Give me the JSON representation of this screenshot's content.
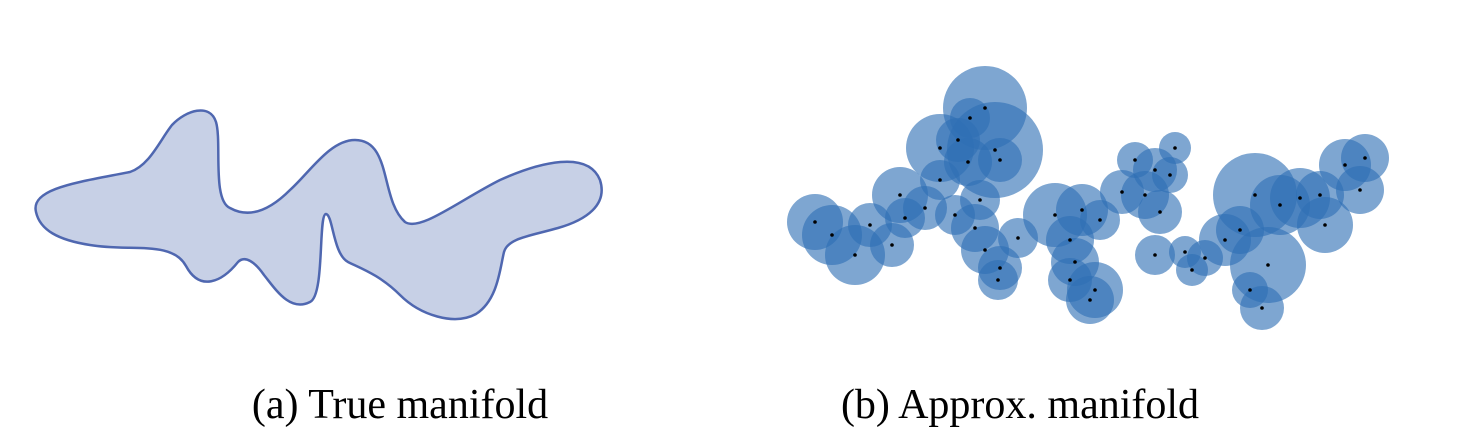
{
  "panels": [
    {
      "caption": "(a) True manifold",
      "shape": "closed-blob",
      "fill": "#c7d0e6",
      "stroke": "#4f67b0"
    },
    {
      "caption": "(b) Approx. manifold",
      "shape": "union-of-balls",
      "ball_fill": "#2f6fb4",
      "ball_opacity": 0.62,
      "center_color": "#000000"
    }
  ]
}
